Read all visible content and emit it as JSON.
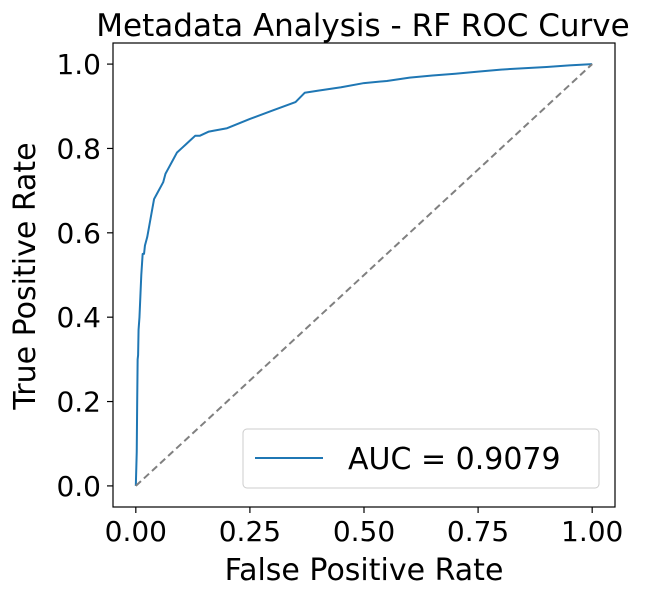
{
  "chart_data": {
    "type": "line",
    "title": "Metadata Analysis - RF ROC Curve",
    "xlabel": "False Positive Rate",
    "ylabel": "True Positive Rate",
    "xlim": [
      -0.05,
      1.05
    ],
    "ylim": [
      -0.05,
      1.05
    ],
    "xticks": [
      "0.00",
      "0.25",
      "0.50",
      "0.75",
      "1.00"
    ],
    "yticks": [
      "0.0",
      "0.2",
      "0.4",
      "0.6",
      "0.8",
      "1.0"
    ],
    "xtick_values": [
      0,
      0.25,
      0.5,
      0.75,
      1.0
    ],
    "ytick_values": [
      0,
      0.2,
      0.4,
      0.6,
      0.8,
      1.0
    ],
    "grid": false,
    "legend_position": "bottom-right",
    "series": [
      {
        "name": "AUC = 0.9079",
        "color": "#1f77b4",
        "style": "solid",
        "x": [
          0,
          0.002,
          0.003,
          0.004,
          0.005,
          0.006,
          0.008,
          0.01,
          0.012,
          0.015,
          0.018,
          0.02,
          0.025,
          0.03,
          0.035,
          0.04,
          0.045,
          0.05,
          0.055,
          0.06,
          0.065,
          0.07,
          0.08,
          0.09,
          0.1,
          0.11,
          0.12,
          0.13,
          0.14,
          0.15,
          0.16,
          0.17,
          0.2,
          0.25,
          0.3,
          0.35,
          0.37,
          0.4,
          0.45,
          0.5,
          0.55,
          0.6,
          0.65,
          0.7,
          0.75,
          0.8,
          0.85,
          0.9,
          0.95,
          1.0
        ],
        "y": [
          0,
          0.08,
          0.2,
          0.3,
          0.31,
          0.37,
          0.4,
          0.45,
          0.5,
          0.55,
          0.55,
          0.57,
          0.59,
          0.62,
          0.65,
          0.68,
          0.69,
          0.7,
          0.71,
          0.72,
          0.74,
          0.75,
          0.77,
          0.79,
          0.8,
          0.81,
          0.82,
          0.83,
          0.83,
          0.835,
          0.84,
          0.842,
          0.848,
          0.87,
          0.89,
          0.91,
          0.932,
          0.937,
          0.945,
          0.955,
          0.96,
          0.968,
          0.973,
          0.977,
          0.982,
          0.987,
          0.99,
          0.993,
          0.997,
          1.0
        ]
      },
      {
        "color": "#808080",
        "style": "dashed",
        "x": [
          0,
          1
        ],
        "y": [
          0,
          1
        ]
      }
    ]
  }
}
